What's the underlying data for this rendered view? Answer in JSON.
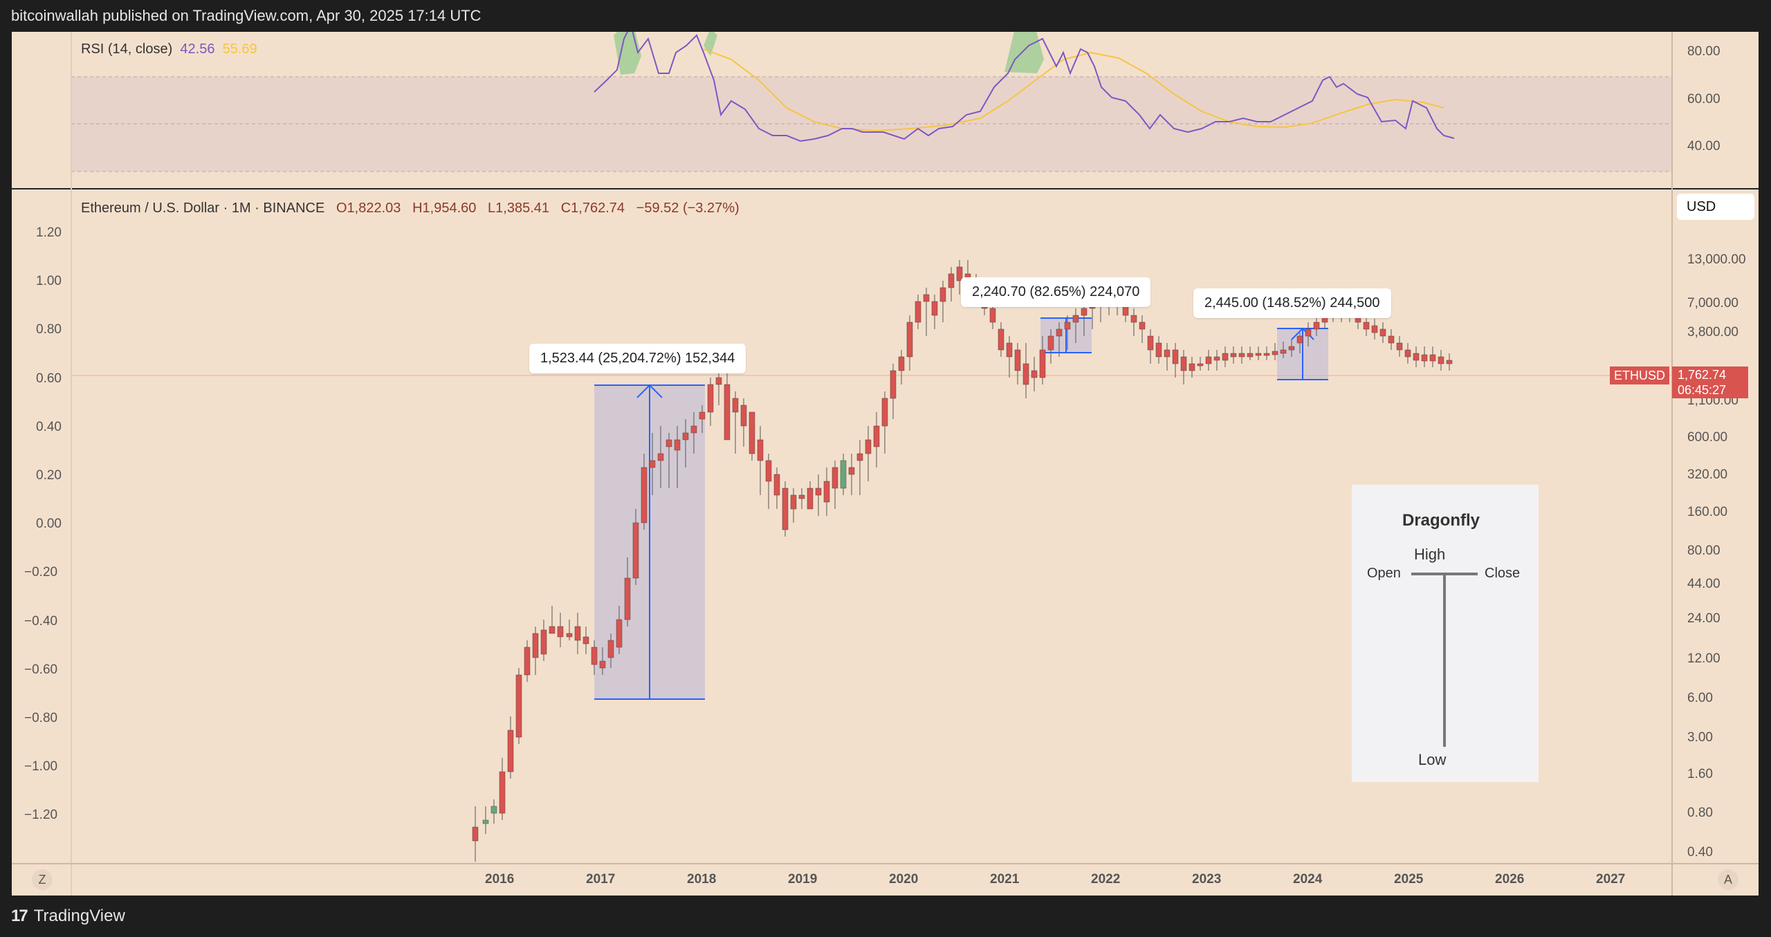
{
  "topbar": {
    "text": "bitcoinwallah published on TradingView.com, Apr 30, 2025 17:14 UTC"
  },
  "rsi": {
    "label": "RSI (14, close)",
    "value1": "42.56",
    "value2": "55.69",
    "ticks": [
      "80.00",
      "60.00",
      "40.00"
    ]
  },
  "header": {
    "symbol": "Ethereum / U.S. Dollar · 1M · BINANCE",
    "open": "O1,822.03",
    "high": "H1,954.60",
    "low": "L1,385.41",
    "close": "C1,762.74",
    "change": "−59.52 (−3.27%)"
  },
  "currency_button": "USD",
  "left_axis": [
    "1.20",
    "1.00",
    "0.80",
    "0.60",
    "0.40",
    "0.20",
    "0.00",
    "−0.20",
    "−0.40",
    "−0.60",
    "−0.80",
    "−1.00",
    "−1.20"
  ],
  "right_axis": [
    "13,000.00",
    "7,000.00",
    "3,800.00",
    "1,100.00",
    "600.00",
    "320.00",
    "160.00",
    "80.00",
    "44.00",
    "24.00",
    "12.00",
    "6.00",
    "3.00",
    "1.60",
    "0.80",
    "0.40"
  ],
  "price_tag": {
    "symbol": "ETHUSD",
    "price": "1,762.74",
    "countdown": "06:45:27"
  },
  "x_axis": [
    "2016",
    "2017",
    "2018",
    "2019",
    "2020",
    "2021",
    "2022",
    "2023",
    "2024",
    "2025",
    "2026",
    "2027"
  ],
  "measurements": [
    {
      "text": "1,523.44 (25,204.72%) 152,344"
    },
    {
      "text": "2,240.70 (82.65%) 224,070"
    },
    {
      "text": "2,445.00 (148.52%) 244,500"
    }
  ],
  "dragonfly": {
    "title": "Dragonfly",
    "high": "High",
    "open": "Open",
    "close": "Close",
    "low": "Low"
  },
  "corner_left": "Z",
  "corner_right": "A",
  "footer": {
    "brand": "TradingView",
    "mark": "17"
  },
  "colors": {
    "up": "#6aa67a",
    "down": "#d9534f",
    "rsi_line": "#7e57c2",
    "rsi_ma": "#f5c542",
    "measure": "#2962ff",
    "background": "#f3e0cc"
  }
}
